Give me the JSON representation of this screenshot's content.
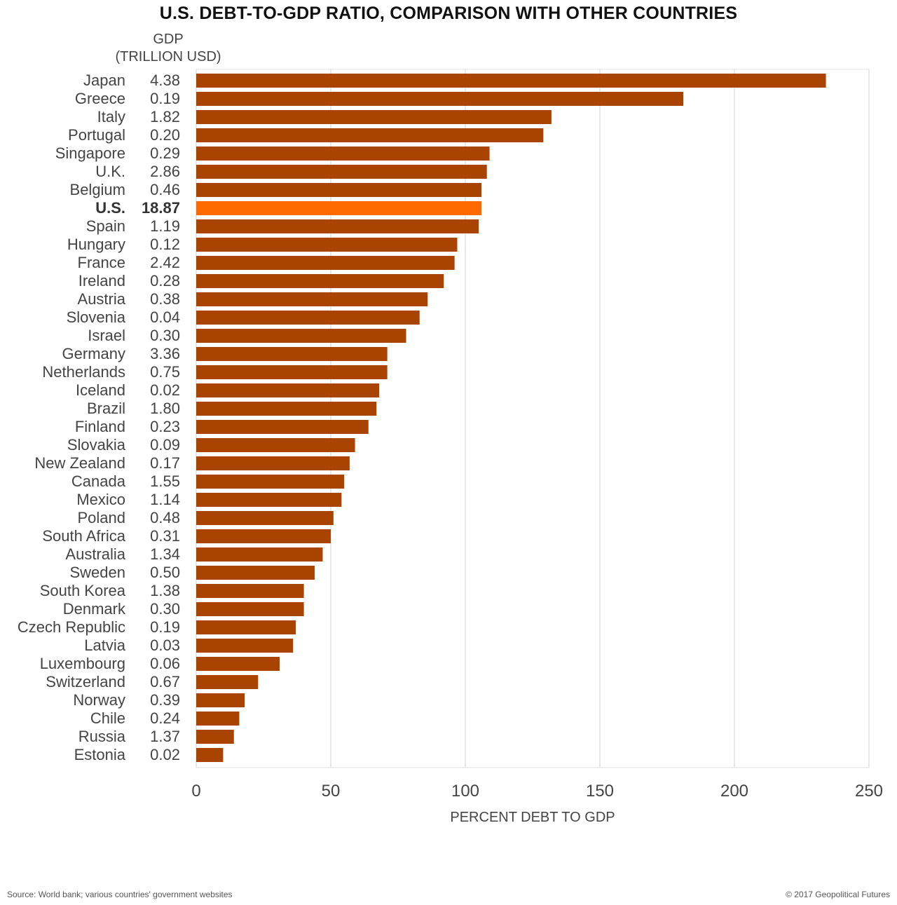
{
  "title": "U.S. DEBT-TO-GDP RATIO, COMPARISON WITH OTHER COUNTRIES",
  "gdp_header": [
    "GDP",
    "(TRILLION USD)"
  ],
  "footer": {
    "source": "Source: World bank; various countries' government websites",
    "copyright": "© 2017 Geopolitical Futures"
  },
  "colors": {
    "bar": "#a84400",
    "highlight": "#ff6a00",
    "grid": "#dddddd"
  },
  "chart_data": {
    "type": "bar",
    "orientation": "horizontal",
    "xlabel": "PERCENT DEBT TO GDP",
    "xlim": [
      0,
      250
    ],
    "xticks": [
      0,
      50,
      100,
      150,
      200,
      250
    ],
    "grid": true,
    "highlight": "U.S.",
    "categories": [
      "Japan",
      "Greece",
      "Italy",
      "Portugal",
      "Singapore",
      "U.K.",
      "Belgium",
      "U.S.",
      "Spain",
      "Hungary",
      "France",
      "Ireland",
      "Austria",
      "Slovenia",
      "Israel",
      "Germany",
      "Netherlands",
      "Iceland",
      "Brazil",
      "Finland",
      "Slovakia",
      "New Zealand",
      "Canada",
      "Mexico",
      "Poland",
      "South Africa",
      "Australia",
      "Sweden",
      "South Korea",
      "Denmark",
      "Czech Republic",
      "Latvia",
      "Luxembourg",
      "Switzerland",
      "Norway",
      "Chile",
      "Russia",
      "Estonia"
    ],
    "gdp": [
      "4.38",
      "0.19",
      "1.82",
      "0.20",
      "0.29",
      "2.86",
      "0.46",
      "18.87",
      "1.19",
      "0.12",
      "2.42",
      "0.28",
      "0.38",
      "0.04",
      "0.30",
      "3.36",
      "0.75",
      "0.02",
      "1.80",
      "0.23",
      "0.09",
      "0.17",
      "1.55",
      "1.14",
      "0.48",
      "0.31",
      "1.34",
      "0.50",
      "1.38",
      "0.30",
      "0.19",
      "0.03",
      "0.06",
      "0.67",
      "0.39",
      "0.24",
      "1.37",
      "0.02"
    ],
    "values": [
      234,
      181,
      132,
      129,
      109,
      108,
      106,
      106,
      105,
      97,
      96,
      92,
      86,
      83,
      78,
      71,
      71,
      68,
      67,
      64,
      59,
      57,
      55,
      54,
      51,
      50,
      47,
      44,
      40,
      40,
      37,
      36,
      31,
      23,
      18,
      16,
      14,
      10
    ]
  }
}
